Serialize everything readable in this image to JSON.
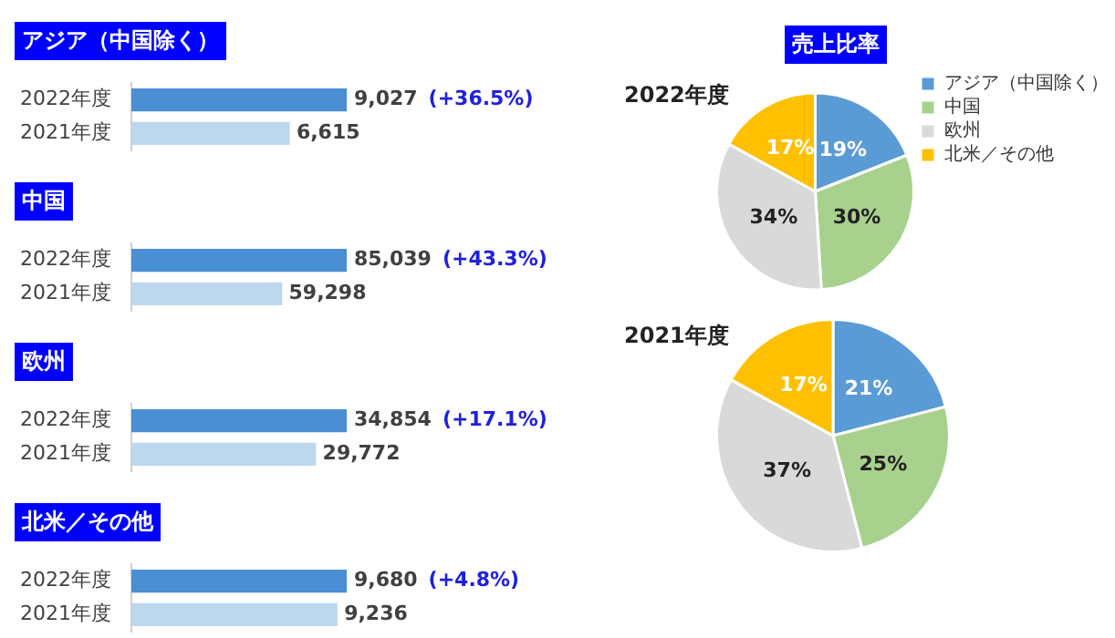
{
  "chart_data": [
    {
      "type": "bar",
      "orientation": "horizontal",
      "title": "アジア（中国除く）",
      "categories": [
        "2022年度",
        "2021年度"
      ],
      "values": [
        9027,
        6615
      ],
      "colors": [
        "#4a8fd4",
        "#bdd7ee"
      ],
      "value_labels": [
        "9,027",
        "6,615"
      ],
      "annotations": [
        "(+36.5%)"
      ]
    },
    {
      "type": "bar",
      "orientation": "horizontal",
      "title": "中国",
      "categories": [
        "2022年度",
        "2021年度"
      ],
      "values": [
        85039,
        59298
      ],
      "colors": [
        "#4a8fd4",
        "#bdd7ee"
      ],
      "value_labels": [
        "85,039",
        "59,298"
      ],
      "annotations": [
        "(+43.3%)"
      ]
    },
    {
      "type": "bar",
      "orientation": "horizontal",
      "title": "欧州",
      "categories": [
        "2022年度",
        "2021年度"
      ],
      "values": [
        34854,
        29772
      ],
      "colors": [
        "#4a8fd4",
        "#bdd7ee"
      ],
      "value_labels": [
        "34,854",
        "29,772"
      ],
      "annotations": [
        "(+17.1%)"
      ]
    },
    {
      "type": "bar",
      "orientation": "horizontal",
      "title": "北米／その他",
      "categories": [
        "2022年度",
        "2021年度"
      ],
      "values": [
        9680,
        9236
      ],
      "colors": [
        "#4a8fd4",
        "#bdd7ee"
      ],
      "value_labels": [
        "9,680",
        "9,236"
      ],
      "annotations": [
        "(+4.8%)"
      ]
    },
    {
      "type": "pie",
      "title": "売上比率",
      "subtitle": "2022年度",
      "categories": [
        "アジア（中国除く）",
        "中国",
        "欧州",
        "北米／その他"
      ],
      "values": [
        19,
        30,
        34,
        17
      ],
      "colors": [
        "#5b9bd5",
        "#a9d18e",
        "#d9d9d9",
        "#ffc000"
      ],
      "value_labels": [
        "19%",
        "30%",
        "34%",
        "17%"
      ],
      "legend": "top right"
    },
    {
      "type": "pie",
      "title": "2021年度",
      "values": [
        21,
        25,
        37,
        17
      ],
      "colors": [
        "#5b9bd5",
        "#a9d18e",
        "#d9d9d9",
        "#ffc000"
      ],
      "value_labels": [
        "21%",
        "25%",
        "37%",
        "17%"
      ]
    }
  ]
}
